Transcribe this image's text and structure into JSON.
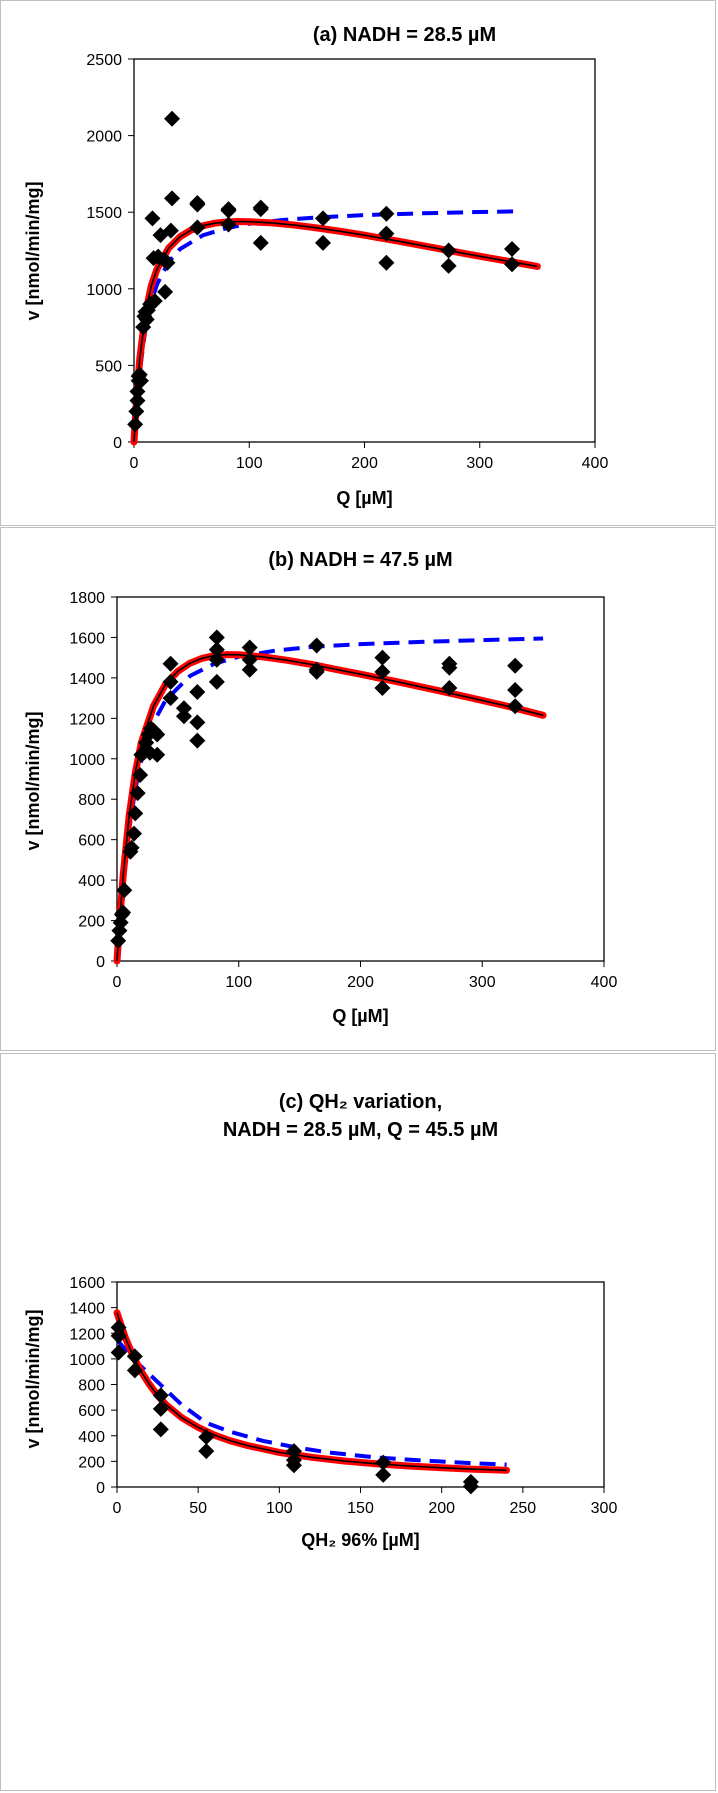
{
  "chart_data": [
    {
      "type": "scatter",
      "title": "(a) NADH = 28.5 µM",
      "xlabel": "Q [µM]",
      "ylabel": "v [nmol/min/mg]",
      "xlim": [
        0,
        400
      ],
      "ylim": [
        0,
        2500
      ],
      "xticks": [
        0,
        100,
        200,
        300,
        400
      ],
      "yticks": [
        0,
        500,
        1000,
        1500,
        2000,
        2500
      ],
      "grid": false,
      "legend": "none",
      "series": [
        {
          "kind": "points",
          "color": "#000000",
          "marker": "diamond",
          "x": [
            1,
            2,
            3,
            3,
            4,
            4,
            5,
            6,
            8,
            9,
            10,
            11,
            12,
            14,
            16,
            17,
            18,
            21,
            23,
            26,
            27,
            29,
            32,
            33,
            33,
            55,
            55,
            55,
            82,
            82,
            82,
            110,
            110,
            110,
            164,
            164,
            219,
            219,
            219,
            273,
            273,
            328,
            328
          ],
          "y": [
            115,
            200,
            270,
            330,
            400,
            430,
            440,
            400,
            750,
            820,
            850,
            800,
            860,
            900,
            1460,
            1200,
            920,
            1210,
            1350,
            1190,
            980,
            1170,
            1380,
            1590,
            2110,
            1400,
            1560,
            1550,
            1420,
            1510,
            1520,
            1300,
            1520,
            1530,
            1300,
            1460,
            1170,
            1360,
            1490,
            1150,
            1250,
            1160,
            1260
          ]
        },
        {
          "kind": "curve",
          "color": "#0000ff",
          "style": "dashed",
          "x": [
            0,
            2,
            5,
            10,
            15,
            20,
            30,
            40,
            60,
            80,
            100,
            130,
            160,
            200,
            250,
            300,
            330
          ],
          "y": [
            0,
            200,
            460,
            740,
            915,
            1030,
            1175,
            1260,
            1350,
            1395,
            1425,
            1450,
            1466,
            1481,
            1493,
            1501,
            1505
          ]
        },
        {
          "kind": "curve",
          "color": "#ff0000",
          "style": "solid-thick",
          "x": [
            0,
            2,
            5,
            10,
            15,
            20,
            30,
            40,
            50,
            60,
            70,
            80,
            90,
            100,
            120,
            140,
            160,
            180,
            200,
            230,
            260,
            290,
            320,
            350
          ],
          "y": [
            0,
            255,
            545,
            840,
            1020,
            1130,
            1265,
            1340,
            1385,
            1412,
            1428,
            1436,
            1439,
            1438,
            1430,
            1415,
            1396,
            1374,
            1350,
            1310,
            1268,
            1226,
            1186,
            1146
          ]
        }
      ]
    },
    {
      "type": "scatter",
      "title": "(b) NADH = 47.5 µM",
      "xlabel": "Q [µM]",
      "ylabel": "v [nmol/min/mg]",
      "xlim": [
        0,
        400
      ],
      "ylim": [
        0,
        1800
      ],
      "xticks": [
        0,
        100,
        200,
        300,
        400
      ],
      "yticks": [
        0,
        200,
        400,
        600,
        800,
        1000,
        1200,
        1400,
        1600,
        1800
      ],
      "grid": false,
      "legend": "none",
      "series": [
        {
          "kind": "points",
          "color": "#000000",
          "marker": "diamond",
          "x": [
            1,
            2,
            3,
            4,
            5,
            6,
            11,
            12,
            14,
            15,
            17,
            19,
            20,
            22,
            24,
            26,
            27,
            28,
            30,
            33,
            33,
            44,
            44,
            44,
            55,
            55,
            66,
            66,
            66,
            82,
            82,
            82,
            82,
            109,
            109,
            109,
            164,
            164,
            164,
            218,
            218,
            218,
            273,
            273,
            273,
            327,
            327,
            327
          ],
          "y": [
            100,
            150,
            190,
            230,
            240,
            350,
            540,
            560,
            630,
            730,
            830,
            920,
            1020,
            1030,
            1080,
            1120,
            1030,
            1150,
            1140,
            1020,
            1120,
            1300,
            1380,
            1470,
            1210,
            1250,
            1090,
            1180,
            1330,
            1380,
            1490,
            1540,
            1600,
            1440,
            1490,
            1550,
            1430,
            1440,
            1560,
            1350,
            1430,
            1500,
            1350,
            1450,
            1470,
            1260,
            1340,
            1460
          ]
        },
        {
          "kind": "curve",
          "color": "#0000ff",
          "style": "dashed",
          "x": [
            0,
            2,
            5,
            10,
            15,
            20,
            30,
            40,
            60,
            80,
            100,
            130,
            160,
            200,
            250,
            300,
            350
          ],
          "y": [
            0,
            160,
            380,
            650,
            850,
            990,
            1180,
            1290,
            1410,
            1470,
            1505,
            1535,
            1553,
            1567,
            1578,
            1587,
            1595
          ]
        },
        {
          "kind": "curve",
          "color": "#ff0000",
          "style": "solid-thick",
          "x": [
            0,
            2,
            5,
            10,
            15,
            20,
            30,
            40,
            50,
            60,
            70,
            80,
            90,
            100,
            120,
            140,
            160,
            180,
            200,
            230,
            260,
            290,
            320,
            350
          ],
          "y": [
            0,
            180,
            420,
            720,
            930,
            1080,
            1260,
            1370,
            1433,
            1473,
            1497,
            1510,
            1515,
            1514,
            1504,
            1487,
            1466,
            1442,
            1418,
            1381,
            1342,
            1302,
            1261,
            1215
          ]
        }
      ]
    },
    {
      "type": "scatter",
      "title": "(c) QH₂ variation,",
      "subtitle": "NADH = 28.5 µM, Q = 45.5 µM",
      "xlabel": "QH₂ 96%  [µM]",
      "ylabel": "v [nmol/min/mg]",
      "xlim": [
        0,
        300
      ],
      "ylim": [
        0,
        1600
      ],
      "xticks": [
        0,
        50,
        100,
        150,
        200,
        250,
        300
      ],
      "yticks": [
        0,
        200,
        400,
        600,
        800,
        1000,
        1200,
        1400,
        1600
      ],
      "grid": false,
      "legend": "none",
      "series": [
        {
          "kind": "points",
          "color": "#000000",
          "marker": "diamond",
          "x": [
            1,
            1,
            1,
            11,
            11,
            27,
            27,
            27,
            55,
            55,
            109,
            109,
            109,
            164,
            164,
            218,
            218
          ],
          "y": [
            1050,
            1180,
            1245,
            910,
            1020,
            450,
            610,
            715,
            280,
            390,
            170,
            210,
            280,
            95,
            190,
            5,
            40
          ]
        },
        {
          "kind": "curve",
          "color": "#0000ff",
          "style": "dashed",
          "x": [
            0,
            10,
            20,
            30,
            40,
            55,
            70,
            90,
            110,
            130,
            160,
            190,
            220,
            240
          ],
          "y": [
            1150,
            1000,
            880,
            760,
            640,
            500,
            430,
            360,
            310,
            270,
            230,
            205,
            185,
            175
          ]
        },
        {
          "kind": "curve",
          "color": "#ff0000",
          "style": "solid-thick",
          "x": [
            0,
            5,
            10,
            15,
            20,
            25,
            30,
            40,
            50,
            60,
            70,
            80,
            100,
            120,
            140,
            160,
            180,
            200,
            220,
            240
          ],
          "y": [
            1360,
            1170,
            1020,
            900,
            800,
            715,
            645,
            540,
            465,
            405,
            360,
            325,
            270,
            232,
            203,
            181,
            164,
            150,
            139,
            130
          ]
        }
      ]
    }
  ]
}
